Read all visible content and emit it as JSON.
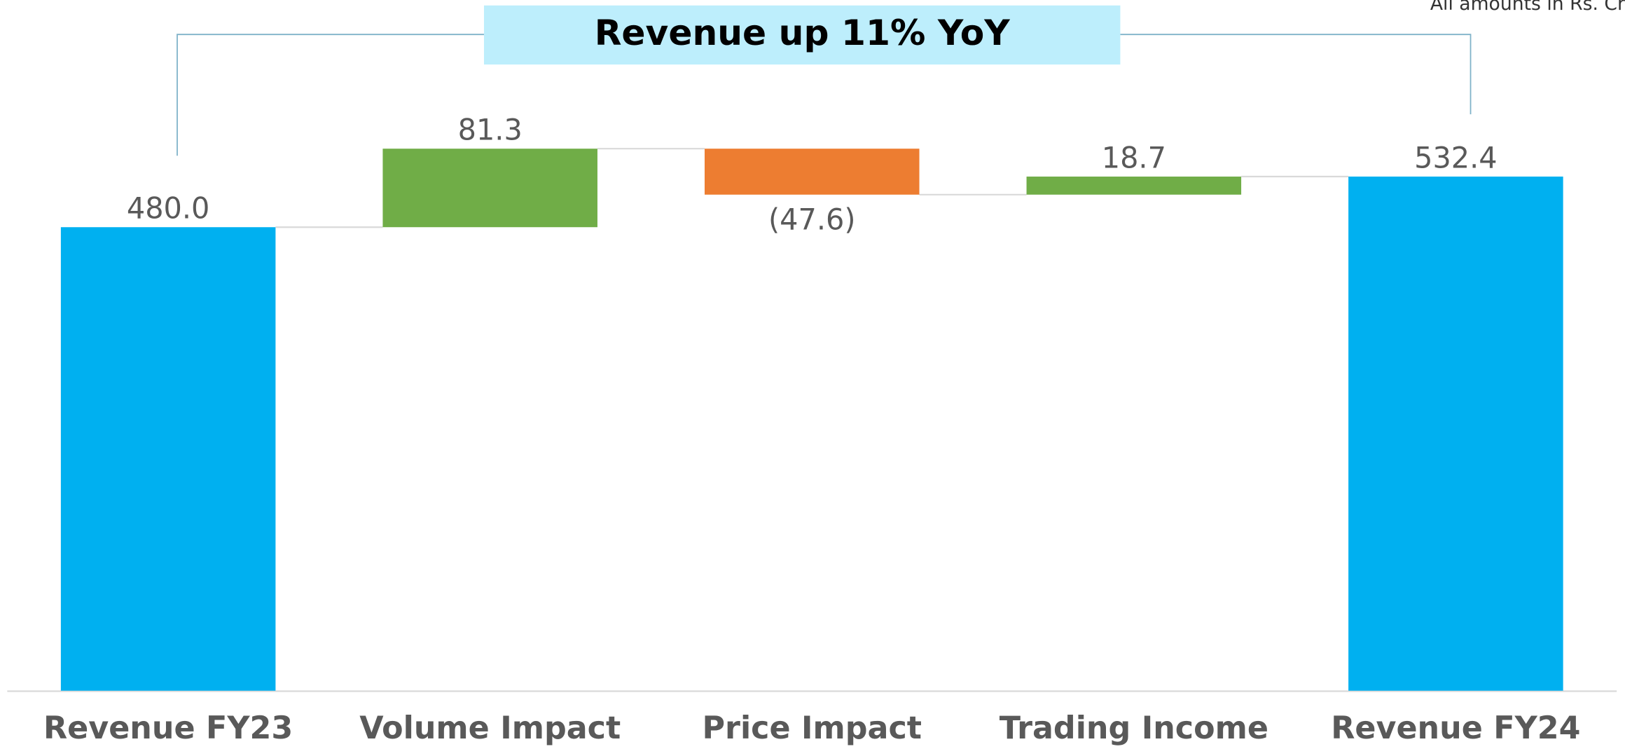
{
  "chart_data": {
    "type": "waterfall",
    "title": "Revenue up 11% YoY",
    "note": "All amounts in Rs. Crore",
    "categories": [
      "Revenue FY23",
      "Volume Impact",
      "Price Impact",
      "Trading Income",
      "Revenue FY24"
    ],
    "values": [
      480.0,
      81.3,
      -47.6,
      18.7,
      532.4
    ],
    "value_labels": [
      "480.0",
      "81.3",
      "(47.6)",
      "18.7",
      "532.4"
    ],
    "measures": [
      "total",
      "increase",
      "decrease",
      "increase",
      "total"
    ],
    "colors": {
      "total": "#00b0f0",
      "increase": "#70ad47",
      "decrease": "#ed7d31"
    },
    "ylim": [
      0,
      715
    ]
  }
}
